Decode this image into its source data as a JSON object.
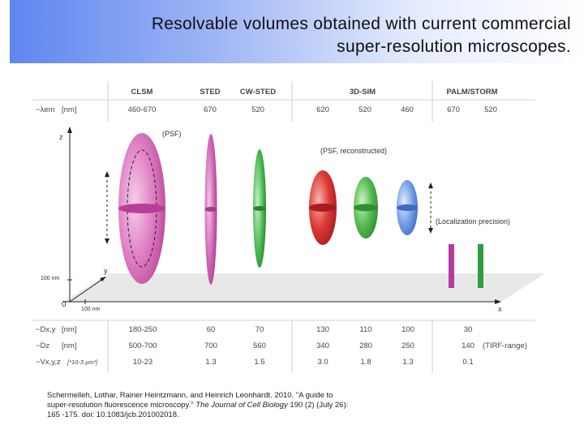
{
  "title": {
    "line1": "Resolvable volumes obtained with current commercial",
    "line2": "super-resolution microscopes."
  },
  "methods": [
    "CLSM",
    "STED",
    "CW-STED",
    "3D-SIM",
    "PALM/STORM"
  ],
  "rows": {
    "lambda": {
      "label": "~λem",
      "unit": "[nm]",
      "values": [
        "460-670",
        "670",
        "520",
        "620",
        "520",
        "460",
        "670",
        "520"
      ]
    },
    "dxy": {
      "label": "~Dx,y",
      "unit": "[nm]",
      "values": [
        "180-250",
        "60",
        "70",
        "130",
        "110",
        "100",
        "30"
      ]
    },
    "dz": {
      "label": "~Dz",
      "unit": "[nm]",
      "values": [
        "500-700",
        "700",
        "560",
        "340",
        "280",
        "250",
        "140"
      ],
      "note": "(TIRF-range)"
    },
    "vxyz": {
      "label": "~Vx,y,z",
      "unit": "[*10-3 µm³]",
      "values": [
        "10-23",
        "1.3",
        "1.5",
        "3.0",
        "1.8",
        "1.3",
        "0.1"
      ]
    }
  },
  "axes": {
    "z": "z",
    "y": "y",
    "x": "x",
    "origin": "0",
    "scale_z": "100 nm",
    "scale_x": "100 nm"
  },
  "annotations": {
    "psf": "(PSF)",
    "psf_reconstructed": "(PSF, reconstructed)",
    "localization": "(Localization precision)"
  },
  "colors": {
    "clsm": "#d46ab4",
    "sted": "#c959b0",
    "cwsted": "#3cb34a",
    "sim_red": "#d7282d",
    "sim_green": "#49b54b",
    "sim_blue": "#5b8fdc",
    "palm_magenta": "#b43a9c",
    "palm_green": "#2f9e3f"
  },
  "citation": {
    "prefix": "Schermelleh, Lothar, Rainer Heintzmann, and Heinrich Leonhardt. 2010. \"A guide to super-resolution fluorescence microscopy.\" ",
    "journal": "The Journal of Cell Biology",
    "suffix": " 190 (2) (July 26): 165 -175. doi: 10.1083/jcb.201002018."
  }
}
